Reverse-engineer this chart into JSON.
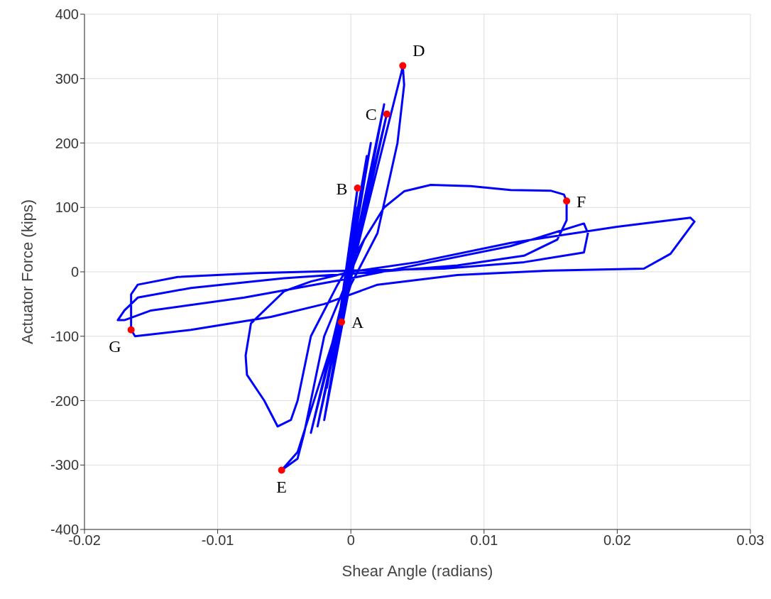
{
  "chart_data": {
    "type": "line",
    "xlabel": "Shear Angle (radians)",
    "ylabel": "Actuator Force (kips)",
    "xlim": [
      -0.02,
      0.03
    ],
    "xticks": [
      -0.02,
      -0.01,
      0,
      0.01,
      0.02,
      0.03
    ],
    "ylim": [
      -400,
      400
    ],
    "yticks": [
      -400,
      -300,
      -200,
      -100,
      0,
      100,
      200,
      300,
      400
    ],
    "grid": true,
    "line_style": "solid",
    "series": [
      {
        "color": "#0000ff",
        "marker": "none",
        "x": [
          0,
          0.0005,
          -0.0007,
          0.0005,
          -0.0012,
          0.0012,
          -0.0018,
          0.0015,
          -0.002,
          0.0025,
          -0.0025,
          0.0027,
          -0.003,
          0.0038,
          0.0039,
          0.004,
          0.0035,
          0.002,
          0,
          -0.002,
          -0.004,
          -0.0052,
          -0.004,
          -0.0035,
          -0.002,
          0,
          0.001,
          0.0025,
          0.004,
          0.006,
          0.009,
          0.012,
          0.015,
          0.016,
          0.0162,
          0.0162,
          0.0155,
          0.013,
          0.008,
          0.002,
          -0.005,
          -0.012,
          -0.016,
          -0.017,
          -0.0175,
          -0.017,
          -0.015,
          -0.008,
          0,
          0.006,
          0.012,
          0.0175,
          0.0178,
          0.0175,
          0.013,
          0.007,
          0,
          -0.007,
          -0.013,
          -0.016,
          -0.0165,
          -0.0165,
          -0.0162,
          -0.012,
          -0.006,
          -0.002,
          0.002,
          0.008,
          0.015,
          0.022,
          0.024,
          0.0258,
          0.0255,
          0.02,
          0.012,
          0.005,
          0,
          -0.003,
          -0.005,
          -0.0075,
          -0.0079,
          -0.0078,
          -0.0065,
          -0.0055,
          -0.0045,
          -0.004,
          -0.003,
          -0.001,
          0.001
        ],
        "values": [
          0,
          100,
          -80,
          130,
          -120,
          180,
          -180,
          200,
          -230,
          260,
          -240,
          245,
          -250,
          310,
          320,
          290,
          200,
          60,
          -20,
          -150,
          -280,
          -308,
          -290,
          -250,
          -100,
          0,
          50,
          100,
          125,
          135,
          133,
          127,
          126,
          120,
          110,
          80,
          50,
          25,
          10,
          0,
          -10,
          -25,
          -40,
          -60,
          -75,
          -75,
          -60,
          -40,
          -10,
          15,
          40,
          75,
          60,
          30,
          15,
          5,
          2,
          -2,
          -8,
          -20,
          -35,
          -90,
          -100,
          -90,
          -70,
          -50,
          -20,
          -5,
          2,
          5,
          28,
          78,
          84,
          70,
          45,
          15,
          0,
          -15,
          -30,
          -80,
          -130,
          -160,
          -200,
          -240,
          -230,
          -200,
          -100,
          -20,
          50
        ]
      },
      {
        "type": "scatter",
        "color": "#ff0000",
        "marker": "circle",
        "x": [
          -0.0007,
          0.0005,
          0.0027,
          0.0039,
          -0.0052,
          0.0162,
          -0.0165
        ],
        "values": [
          -78,
          130,
          245,
          320,
          -308,
          110,
          -90
        ]
      }
    ],
    "annotations": [
      {
        "text": "A",
        "x": -0.0007,
        "y": -78
      },
      {
        "text": "B",
        "x": 0.0005,
        "y": 130
      },
      {
        "text": "C",
        "x": 0.0027,
        "y": 245
      },
      {
        "text": "D",
        "x": 0.0039,
        "y": 320
      },
      {
        "text": "E",
        "x": -0.0052,
        "y": -308
      },
      {
        "text": "F",
        "x": 0.0162,
        "y": 110
      },
      {
        "text": "G",
        "x": -0.0165,
        "y": -90
      }
    ]
  }
}
